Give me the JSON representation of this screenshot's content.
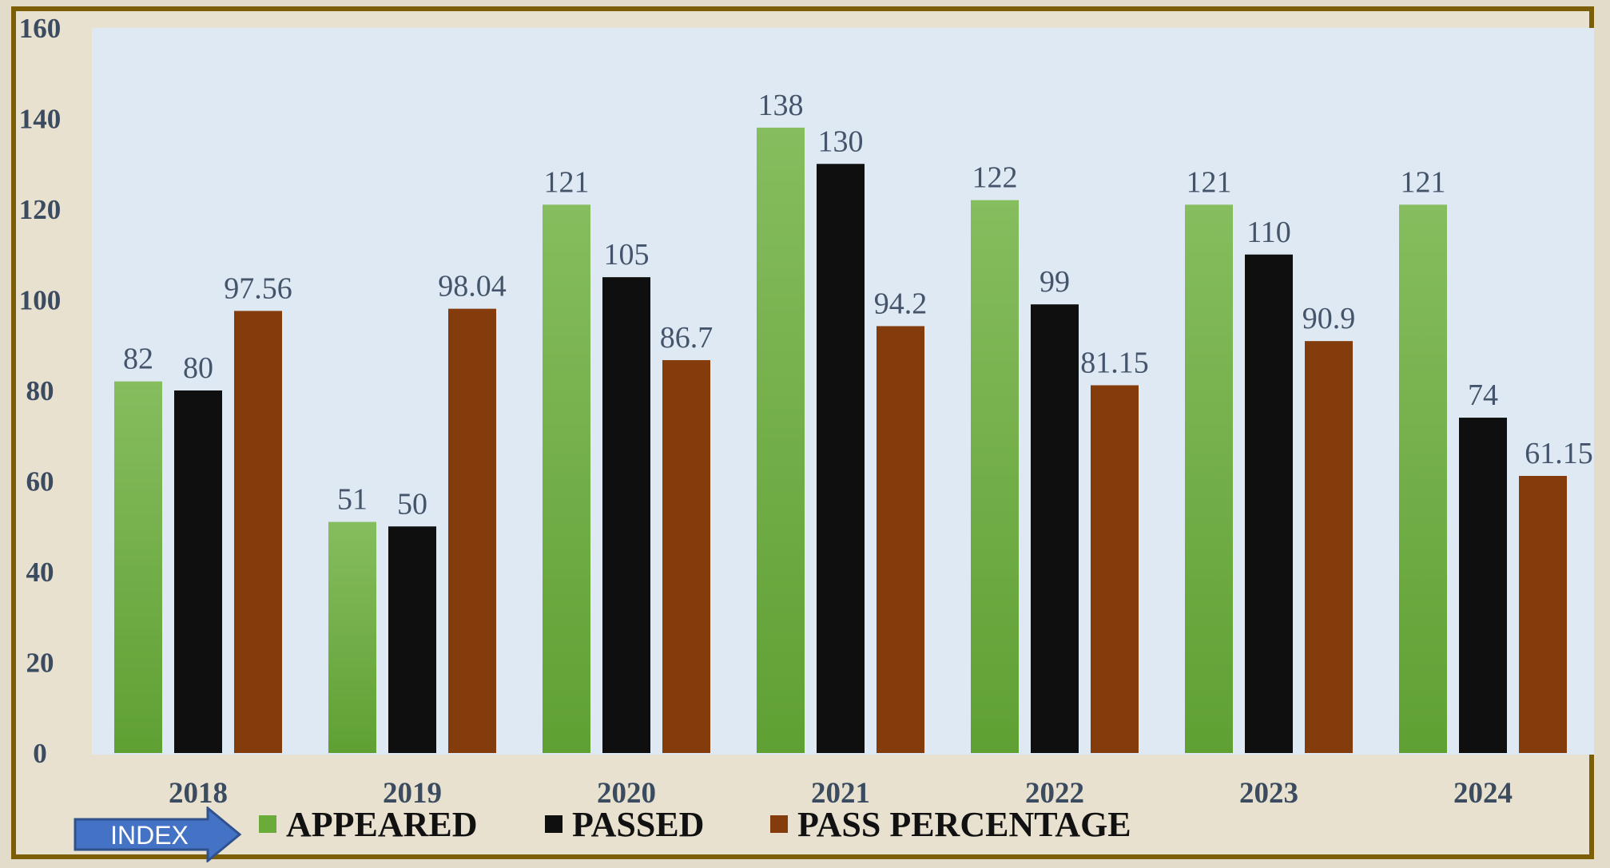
{
  "chart_data": {
    "type": "bar",
    "categories": [
      "2018",
      "2019",
      "2020",
      "2021",
      "2022",
      "2023",
      "2024"
    ],
    "series": [
      {
        "name": "APPEARED",
        "values": [
          82,
          51,
          121,
          138,
          122,
          121,
          121
        ],
        "labels": [
          "82",
          "51",
          "121",
          "138",
          "122",
          "121",
          "121"
        ]
      },
      {
        "name": "PASSED",
        "values": [
          80,
          50,
          105,
          130,
          99,
          110,
          74
        ],
        "labels": [
          "80",
          "50",
          "105",
          "130",
          "99",
          "110",
          "74"
        ]
      },
      {
        "name": "PASS PERCENTAGE",
        "values": [
          97.56,
          98.04,
          86.7,
          94.2,
          81.15,
          90.9,
          61.15
        ],
        "labels": [
          "97.56",
          "98.04",
          "86.7",
          "94.2",
          "81.15",
          "90.9",
          "61.15"
        ]
      }
    ],
    "ylim": [
      0,
      160
    ],
    "yticks": [
      "0",
      "20",
      "40",
      "60",
      "80",
      "100",
      "120",
      "140",
      "160"
    ],
    "grid": false,
    "legend_position": "bottom"
  },
  "colors": {
    "appeared": "#6aab3a",
    "passed": "#0f0f0f",
    "pass_percentage": "#843c0c",
    "plot_background": "#dfe9f4",
    "frame": "#7c5e06",
    "index_arrow": "#4472c4"
  },
  "legend": {
    "index_label": "INDEX",
    "appeared": "APPEARED",
    "passed": "PASSED",
    "pass_percentage": "PASS PERCENTAGE"
  }
}
